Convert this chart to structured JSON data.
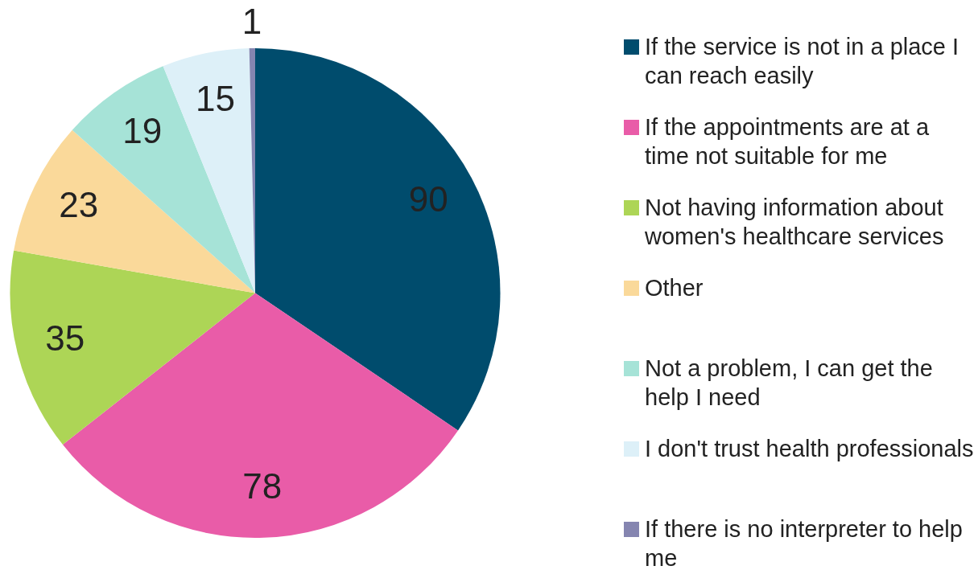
{
  "chart_data": {
    "type": "pie",
    "legend": "right",
    "data_labels": true,
    "categories": [
      "If the service is not in a place I can reach easily",
      "If the appointments are at a time not suitable for me",
      "Not having information about women's healthcare services",
      "Other",
      "Not a problem, I can get the help I need",
      "I don't trust health professionals",
      "If there is no interpreter to help me"
    ],
    "values": [
      90,
      78,
      35,
      23,
      19,
      15,
      1
    ],
    "colors": [
      "#004c6d",
      "#e95ca8",
      "#add556",
      "#fad99a",
      "#a6e3d7",
      "#ddf0f8",
      "#8585b0"
    ]
  }
}
